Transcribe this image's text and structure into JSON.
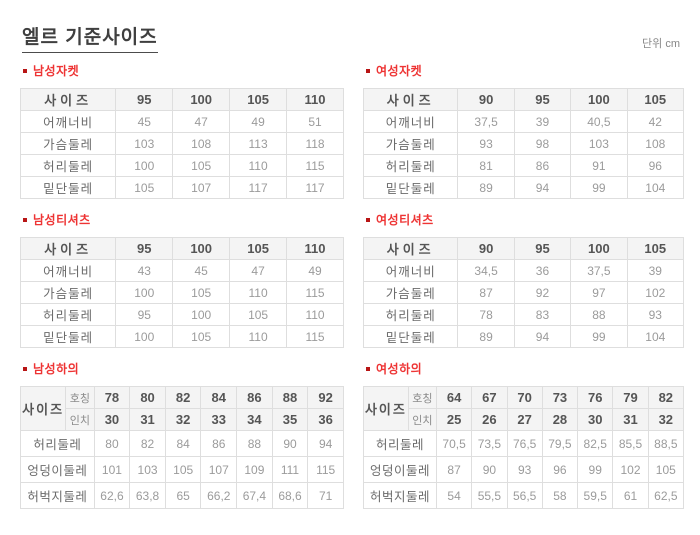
{
  "page": {
    "title": "엘르 기준사이즈",
    "unit_label": "단위 cm"
  },
  "colors": {
    "section_title_red": "#ee3434",
    "bullet_red": "#b81515",
    "header_bg": "#f4f4f4",
    "table_border": "#dedede",
    "title_text": "#3f3f3f",
    "header_text": "#555555",
    "row_label_text": "#6b6b6b",
    "value_text": "#9b9b9b"
  },
  "sections": [
    {
      "kind": "simple",
      "section_title": "남성자켓",
      "corner_label": "사이즈",
      "size_headers": [
        "95",
        "100",
        "105",
        "110"
      ],
      "rows": [
        {
          "label": "어깨너비",
          "values": [
            "45",
            "47",
            "49",
            "51"
          ]
        },
        {
          "label": "가슴둘레",
          "values": [
            "103",
            "108",
            "113",
            "118"
          ]
        },
        {
          "label": "허리둘레",
          "values": [
            "100",
            "105",
            "110",
            "115"
          ]
        },
        {
          "label": "밑단둘레",
          "values": [
            "105",
            "107",
            "117",
            "117"
          ]
        }
      ]
    },
    {
      "kind": "simple",
      "section_title": "여성자켓",
      "corner_label": "사이즈",
      "size_headers": [
        "90",
        "95",
        "100",
        "105"
      ],
      "rows": [
        {
          "label": "어깨너비",
          "values": [
            "37,5",
            "39",
            "40,5",
            "42"
          ]
        },
        {
          "label": "가슴둘레",
          "values": [
            "93",
            "98",
            "103",
            "108"
          ]
        },
        {
          "label": "허리둘레",
          "values": [
            "81",
            "86",
            "91",
            "96"
          ]
        },
        {
          "label": "밑단둘레",
          "values": [
            "89",
            "94",
            "99",
            "104"
          ]
        }
      ]
    },
    {
      "kind": "simple",
      "section_title": "남성티셔츠",
      "corner_label": "사이즈",
      "size_headers": [
        "95",
        "100",
        "105",
        "110"
      ],
      "rows": [
        {
          "label": "어깨너비",
          "values": [
            "43",
            "45",
            "47",
            "49"
          ]
        },
        {
          "label": "가슴둘레",
          "values": [
            "100",
            "105",
            "110",
            "115"
          ]
        },
        {
          "label": "허리둘레",
          "values": [
            "95",
            "100",
            "105",
            "110"
          ]
        },
        {
          "label": "밑단둘레",
          "values": [
            "100",
            "105",
            "110",
            "115"
          ]
        }
      ]
    },
    {
      "kind": "simple",
      "section_title": "여성티셔츠",
      "corner_label": "사이즈",
      "size_headers": [
        "90",
        "95",
        "100",
        "105"
      ],
      "rows": [
        {
          "label": "어깨너비",
          "values": [
            "34,5",
            "36",
            "37,5",
            "39"
          ]
        },
        {
          "label": "가슴둘레",
          "values": [
            "87",
            "92",
            "97",
            "102"
          ]
        },
        {
          "label": "허리둘레",
          "values": [
            "78",
            "83",
            "88",
            "93"
          ]
        },
        {
          "label": "밑단둘레",
          "values": [
            "89",
            "94",
            "99",
            "104"
          ]
        }
      ]
    },
    {
      "kind": "double",
      "section_title": "남성하의",
      "corner_label": "사이즈",
      "header_rows": [
        {
          "label": "호칭",
          "values": [
            "78",
            "80",
            "82",
            "84",
            "86",
            "88",
            "92"
          ]
        },
        {
          "label": "인치",
          "values": [
            "30",
            "31",
            "32",
            "33",
            "34",
            "35",
            "36"
          ]
        }
      ],
      "rows": [
        {
          "label": "허리둘레",
          "values": [
            "80",
            "82",
            "84",
            "86",
            "88",
            "90",
            "94"
          ]
        },
        {
          "label": "엉덩이둘레",
          "values": [
            "101",
            "103",
            "105",
            "107",
            "109",
            "111",
            "115"
          ]
        },
        {
          "label": "허벅지둘레",
          "values": [
            "62,6",
            "63,8",
            "65",
            "66,2",
            "67,4",
            "68,6",
            "71"
          ]
        }
      ]
    },
    {
      "kind": "double",
      "section_title": "여성하의",
      "corner_label": "사이즈",
      "header_rows": [
        {
          "label": "호칭",
          "values": [
            "64",
            "67",
            "70",
            "73",
            "76",
            "79",
            "82"
          ]
        },
        {
          "label": "인치",
          "values": [
            "25",
            "26",
            "27",
            "28",
            "30",
            "31",
            "32"
          ]
        }
      ],
      "rows": [
        {
          "label": "허리둘레",
          "values": [
            "70,5",
            "73,5",
            "76,5",
            "79,5",
            "82,5",
            "85,5",
            "88,5"
          ]
        },
        {
          "label": "엉덩이둘레",
          "values": [
            "87",
            "90",
            "93",
            "96",
            "99",
            "102",
            "105"
          ]
        },
        {
          "label": "허벅지둘레",
          "values": [
            "54",
            "55,5",
            "56,5",
            "58",
            "59,5",
            "61",
            "62,5"
          ]
        }
      ]
    }
  ]
}
